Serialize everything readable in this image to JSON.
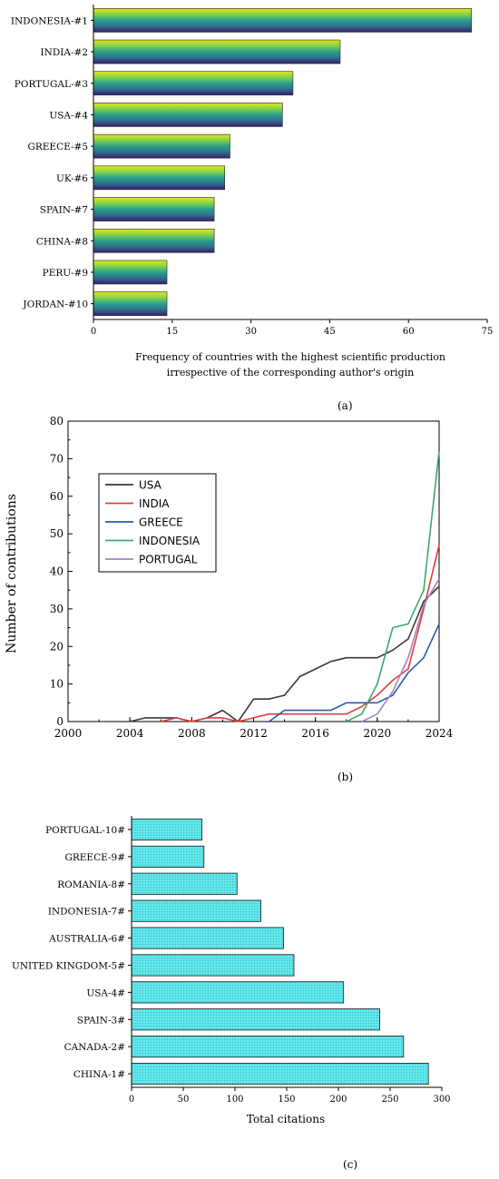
{
  "chart_data": [
    {
      "type": "bar",
      "orientation": "horizontal",
      "categories": [
        "INDONESIA-#1",
        "INDIA-#2",
        "PORTUGAL-#3",
        "USA-#4",
        "GREECE-#5",
        "UK-#6",
        "SPAIN-#7",
        "CHINA-#8",
        "PERU-#9",
        "JORDAN-#10"
      ],
      "values": [
        72,
        47,
        38,
        36,
        26,
        25,
        23,
        23,
        14,
        14
      ],
      "xlabel": "Frequency of countries with the highest scientific production",
      "xlabel2": "irrespective of the corresponding author's origin",
      "xlim": [
        0,
        75
      ],
      "xticks": [
        "0",
        "15",
        "30",
        "45",
        "60",
        "75"
      ],
      "caption": "(a)",
      "bar_gradient": [
        "#3b1e6e",
        "#2f6f8e",
        "#2aa08a",
        "#7fd34e",
        "#e8e419"
      ]
    },
    {
      "type": "line",
      "x": [
        2004,
        2005,
        2006,
        2007,
        2008,
        2009,
        2010,
        2011,
        2012,
        2013,
        2014,
        2015,
        2016,
        2017,
        2018,
        2019,
        2020,
        2021,
        2022,
        2023,
        2024
      ],
      "series": [
        {
          "name": "USA",
          "color": "#3a3a3a",
          "x": [
            2004,
            2005,
            2006,
            2007,
            2008,
            2009,
            2010,
            2011,
            2012,
            2013,
            2014,
            2015,
            2016,
            2017,
            2018,
            2019,
            2020,
            2021,
            2022,
            2023,
            2024
          ],
          "values": [
            0,
            1,
            1,
            1,
            0,
            1,
            3,
            0,
            6,
            6,
            7,
            12,
            14,
            16,
            17,
            17,
            17,
            19,
            22,
            32,
            36
          ]
        },
        {
          "name": "INDIA",
          "color": "#e03c3c",
          "x": [
            2006,
            2007,
            2008,
            2009,
            2010,
            2011,
            2012,
            2013,
            2014,
            2015,
            2016,
            2017,
            2018,
            2019,
            2020,
            2021,
            2022,
            2023,
            2024
          ],
          "values": [
            0,
            1,
            0,
            1,
            1,
            0,
            1,
            2,
            2,
            2,
            2,
            2,
            2,
            4,
            7,
            11,
            14,
            30,
            47
          ]
        },
        {
          "name": "GREECE",
          "color": "#2a5ca8",
          "x": [
            2013,
            2014,
            2015,
            2016,
            2017,
            2018,
            2019,
            2020,
            2021,
            2022,
            2023,
            2024
          ],
          "values": [
            0,
            3,
            3,
            3,
            3,
            5,
            5,
            5,
            7,
            13,
            17,
            26
          ]
        },
        {
          "name": "INDONESIA",
          "color": "#3aaa6e",
          "x": [
            2018,
            2019,
            2020,
            2021,
            2022,
            2023,
            2024
          ],
          "values": [
            0,
            2,
            10,
            25,
            26,
            35,
            72
          ]
        },
        {
          "name": "PORTUGAL",
          "color": "#a383c4",
          "x": [
            2019,
            2020,
            2021,
            2022,
            2023,
            2024
          ],
          "values": [
            0,
            2,
            8,
            17,
            31,
            38
          ]
        }
      ],
      "ylabel": "Number of contributions",
      "xlim": [
        2000,
        2024
      ],
      "ylim": [
        0,
        80
      ],
      "xticks": [
        "2000",
        "2004",
        "2008",
        "2012",
        "2016",
        "2020",
        "2024"
      ],
      "yticks": [
        "0",
        "10",
        "20",
        "30",
        "40",
        "50",
        "60",
        "70",
        "80"
      ],
      "legend_position": "top-left",
      "caption": "(b)"
    },
    {
      "type": "bar",
      "orientation": "horizontal",
      "categories": [
        "PORTUGAL-10#",
        "GREECE-9#",
        "ROMANIA-8#",
        "INDONESIA-7#",
        "AUSTRALIA-6#",
        "UNITED KINGDOM-5#",
        "USA-4#",
        "SPAIN-3#",
        "CANADA-2#",
        "CHINA-1#"
      ],
      "values": [
        68,
        70,
        102,
        125,
        147,
        157,
        205,
        240,
        263,
        287
      ],
      "xlabel": "Total citations",
      "xlim": [
        0,
        300
      ],
      "xticks": [
        "0",
        "50",
        "100",
        "150",
        "200",
        "250",
        "300"
      ],
      "caption": "(c)",
      "bar_color": "#5fe6ea"
    }
  ]
}
